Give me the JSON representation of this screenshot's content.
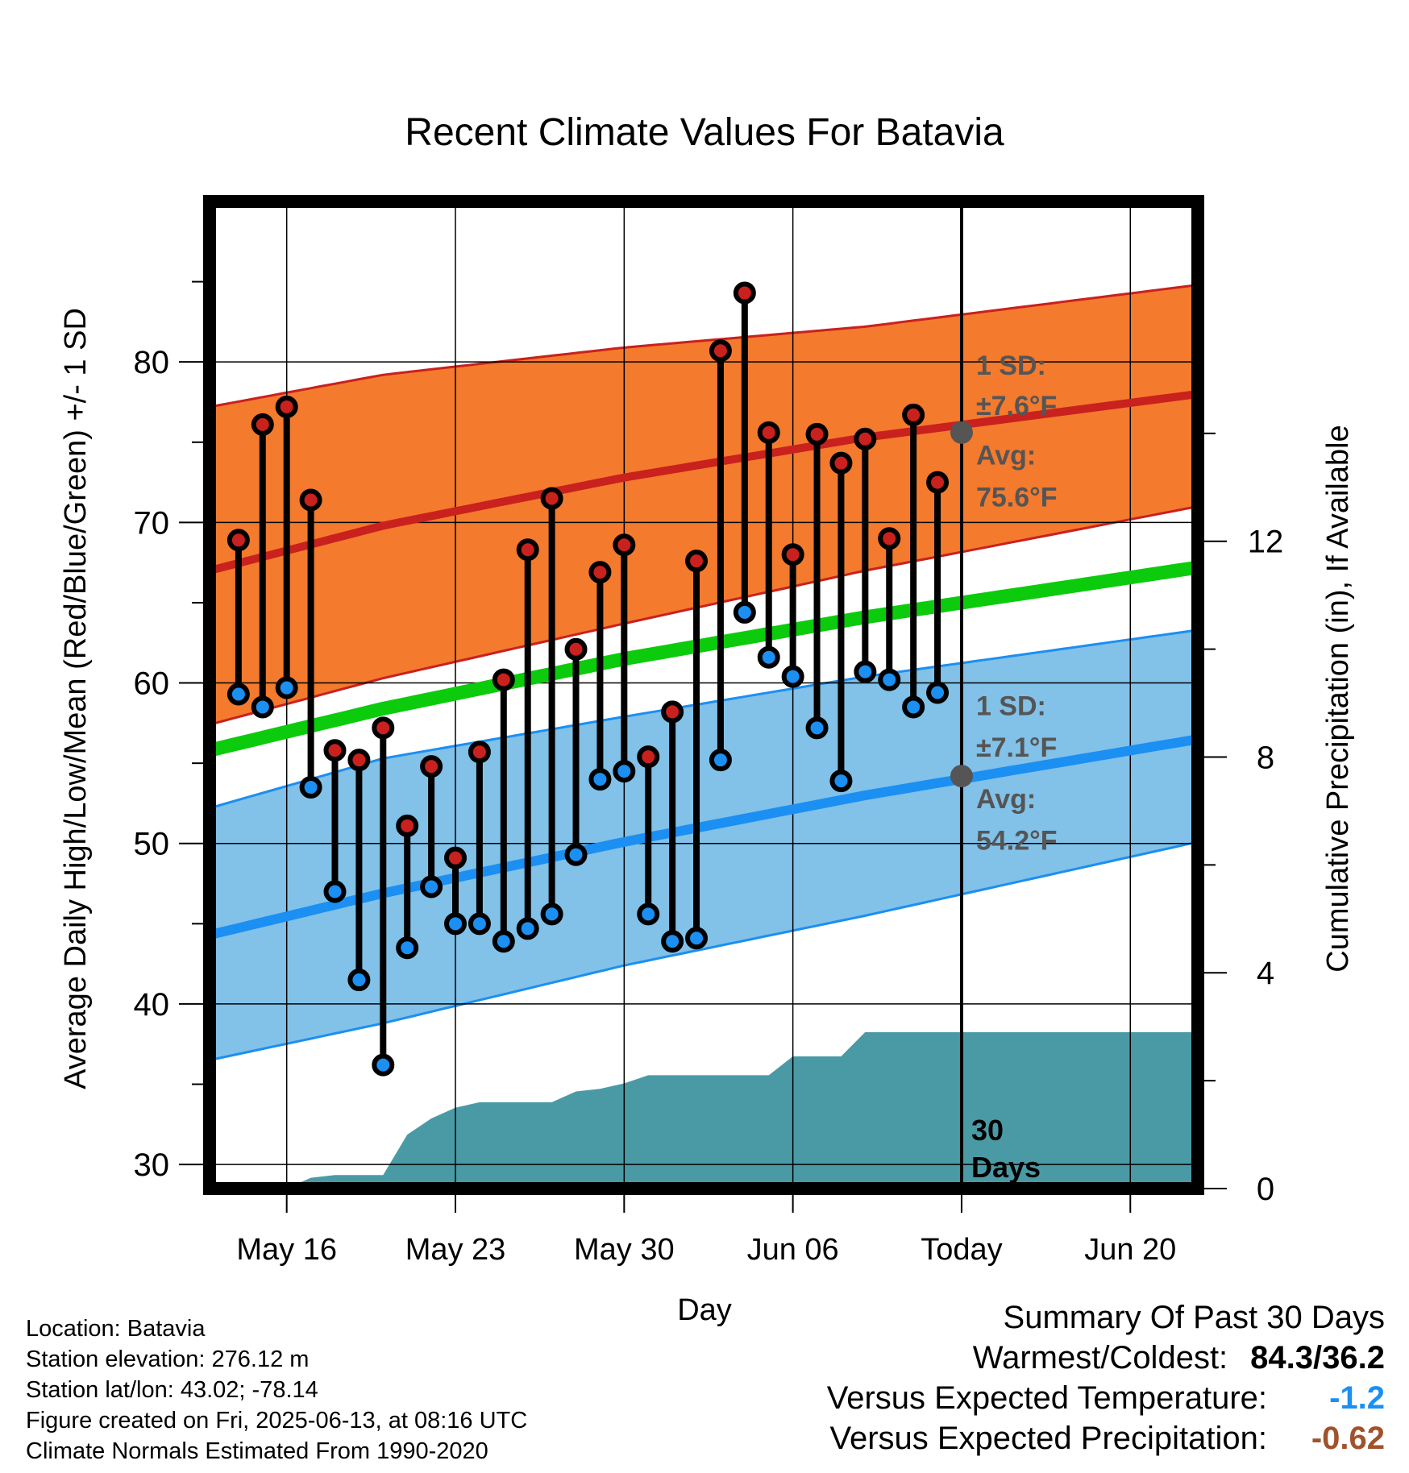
{
  "chart_data": {
    "type": "line",
    "title": "Recent Climate Values For Batavia",
    "xlabel": "Day",
    "ylabel": "Average Daily High/Low/Mean (Red/Blue/Green) +/- 1 SD",
    "y2label": "Cumulative Precipitation (in), If Available",
    "x_tick_labels": [
      "May 16",
      "May 23",
      "May 30",
      "Jun 06",
      "Today",
      "Jun 20"
    ],
    "x_tick_days": [
      16,
      23,
      30,
      37,
      44,
      51
    ],
    "x_range_days": [
      12.8,
      53.8
    ],
    "today_day": 44,
    "ylim": [
      28.5,
      90
    ],
    "y_ticks": [
      30,
      40,
      50,
      60,
      70,
      80
    ],
    "y2lim": [
      0,
      18.3
    ],
    "y2_ticks": [
      0,
      4,
      8,
      12
    ],
    "grid": true,
    "colors": {
      "high": "#c9211e",
      "high_band": "#f47a2d",
      "low": "#1b8ff2",
      "low_band": "#82c1e8",
      "mean": "#0ccb0c",
      "precip": "#4a9aa5",
      "annotation": "#555555",
      "vs_temp": "#1b8ff2",
      "vs_precip": "#a0522d"
    },
    "series": [
      {
        "name": "High",
        "days": [
          14,
          15,
          16,
          17,
          18,
          19,
          20,
          21,
          22,
          23,
          24,
          25,
          26,
          27,
          28,
          29,
          30,
          31,
          32,
          33,
          34,
          35,
          36,
          37,
          38,
          39,
          40,
          41,
          42,
          43
        ],
        "values": [
          68.9,
          76.1,
          77.2,
          71.4,
          55.8,
          55.2,
          57.2,
          51.1,
          54.8,
          49.1,
          55.7,
          60.2,
          68.3,
          71.5,
          62.1,
          66.9,
          68.6,
          55.4,
          58.2,
          67.6,
          80.7,
          84.3,
          75.6,
          68.0,
          75.5,
          73.7,
          75.2,
          69.0,
          76.7,
          72.5
        ]
      },
      {
        "name": "Low",
        "days": [
          14,
          15,
          16,
          17,
          18,
          19,
          20,
          21,
          22,
          23,
          24,
          25,
          26,
          27,
          28,
          29,
          30,
          31,
          32,
          33,
          34,
          35,
          36,
          37,
          38,
          39,
          40,
          41,
          42,
          43
        ],
        "values": [
          59.3,
          58.5,
          59.7,
          53.5,
          47.0,
          41.5,
          36.2,
          43.5,
          47.3,
          45.0,
          45.0,
          43.9,
          44.7,
          45.6,
          49.3,
          54.0,
          54.5,
          45.6,
          43.9,
          44.1,
          55.2,
          64.4,
          61.6,
          60.4,
          57.2,
          53.9,
          60.7,
          60.2,
          58.5,
          59.4
        ]
      },
      {
        "name": "Normal High",
        "days": [
          12.8,
          20,
          30,
          40,
          53.8
        ],
        "values": [
          67.0,
          69.8,
          72.8,
          75.3,
          78.0
        ]
      },
      {
        "name": "Normal High SD band",
        "days": [
          12.8,
          20,
          30,
          40,
          53.8
        ],
        "upper": [
          77.2,
          79.2,
          80.9,
          82.2,
          84.8
        ],
        "lower": [
          57.4,
          60.3,
          63.7,
          67.0,
          71.0
        ]
      },
      {
        "name": "Normal Mean",
        "days": [
          12.8,
          20,
          30,
          40,
          53.8
        ],
        "values": [
          55.8,
          58.4,
          61.5,
          64.1,
          67.2
        ]
      },
      {
        "name": "Normal Low",
        "days": [
          12.8,
          20,
          30,
          40,
          53.8
        ],
        "values": [
          44.3,
          46.9,
          50.1,
          53.0,
          56.5
        ]
      },
      {
        "name": "Normal Low SD band",
        "days": [
          12.8,
          20,
          30,
          40,
          53.8
        ],
        "upper": [
          52.2,
          55.3,
          57.9,
          60.4,
          63.3
        ],
        "lower": [
          36.5,
          38.8,
          42.4,
          45.5,
          50.1
        ]
      },
      {
        "name": "Cumulative Precipitation",
        "days": [
          16,
          17,
          18,
          19,
          20,
          21,
          22,
          23,
          24,
          25,
          26,
          27,
          28,
          29,
          30,
          31,
          32,
          33,
          34,
          35,
          36,
          37,
          38,
          39,
          40,
          53.8
        ],
        "values": [
          0.0,
          0.2,
          0.25,
          0.25,
          0.25,
          1.0,
          1.3,
          1.5,
          1.6,
          1.6,
          1.6,
          1.6,
          1.8,
          1.85,
          1.95,
          2.1,
          2.1,
          2.1,
          2.1,
          2.1,
          2.1,
          2.45,
          2.45,
          2.45,
          2.9,
          2.9
        ]
      }
    ],
    "annotations": {
      "high_sd_title": "1 SD:",
      "high_sd_value": "±7.6°F",
      "high_avg_title": "Avg:",
      "high_avg_value": "75.6°F",
      "low_sd_title": "1 SD:",
      "low_sd_value": "±7.1°F",
      "low_avg_title": "Avg:",
      "low_avg_value": "54.2°F",
      "today_high_avg": 75.6,
      "today_low_avg": 54.2,
      "days_label_line1": "30",
      "days_label_line2": "Days"
    }
  },
  "info": {
    "location": "Location: Batavia",
    "elevation": "Station elevation: 276.12 m",
    "latlon": "Station lat/lon: 43.02; -78.14",
    "created": "Figure created on Fri, 2025-06-13, at 08:16 UTC",
    "normals": "Climate Normals Estimated From 1990-2020"
  },
  "summary": {
    "title": "Summary Of Past 30 Days",
    "warm_cold_label": "Warmest/Coldest:",
    "warm_cold_value": "84.3/36.2",
    "vs_temp_label": "Versus Expected Temperature:",
    "vs_temp_value": "-1.2",
    "vs_precip_label": "Versus Expected Precipitation:",
    "vs_precip_value": "-0.62"
  }
}
